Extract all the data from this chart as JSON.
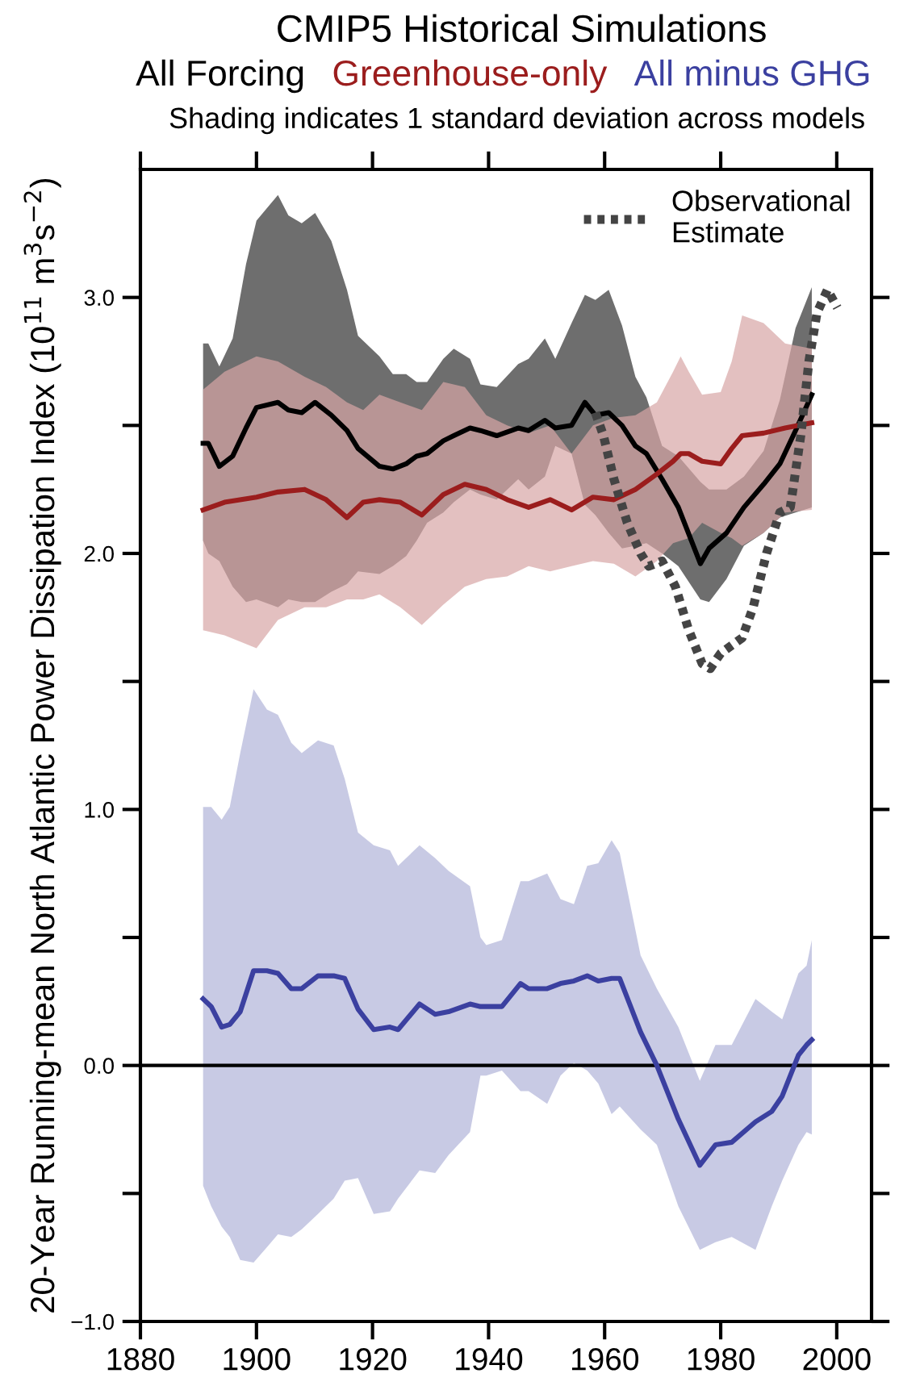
{
  "chart_data": {
    "type": "line",
    "title": "CMIP5 Historical Simulations",
    "subtitle": "Shading indicates 1 standard deviation across models",
    "ylabel": "20-Year Running-mean North Atlantic Power Dissipation Index (10$^{11}$ m$^{3}$s$^{−2}$)",
    "xlim": [
      1880,
      2006
    ],
    "xticks": [
      1880,
      1900,
      1920,
      1940,
      1960,
      1980,
      2000
    ],
    "ylim": [
      -1.0,
      3.5
    ],
    "yticks": [
      {
        "value": -1.0,
        "label": "−1.0"
      },
      {
        "value": -0.5,
        "label": null
      },
      {
        "value": 0.0,
        "label": "0.0"
      },
      {
        "value": 0.5,
        "label": null
      },
      {
        "value": 1.0,
        "label": "1.0"
      },
      {
        "value": 1.5,
        "label": null
      },
      {
        "value": 2.0,
        "label": "2.0"
      },
      {
        "value": 2.5,
        "label": null
      },
      {
        "value": 3.0,
        "label": "3.0"
      }
    ],
    "ref_lines": [
      {
        "axis": "y",
        "value": 0,
        "color": "#000000"
      }
    ],
    "grid": false,
    "legend": "top right",
    "series": [
      {
        "name": "All Forcing",
        "line_style": "solid",
        "color": "#000000",
        "x": [
          1890.8,
          1891.7,
          1893.6,
          1895.9,
          1898.2,
          1900.0,
          1903.7,
          1905.5,
          1907.8,
          1910.1,
          1912.9,
          1915.6,
          1917.5,
          1921.2,
          1923.5,
          1925.8,
          1927.6,
          1929.4,
          1932.2,
          1934.0,
          1936.8,
          1938.6,
          1941.4,
          1945.1,
          1946.9,
          1949.7,
          1951.5,
          1954.3,
          1956.6,
          1958.4,
          1960.7,
          1963.0,
          1965.3,
          1967.2,
          1969.9,
          1972.7,
          1976.5,
          1978.0,
          1981.0,
          1984.0,
          1987.4,
          1990.2,
          1992.9,
          1995.7
        ],
        "values": [
          2.43,
          2.43,
          2.34,
          2.38,
          2.49,
          2.57,
          2.59,
          2.56,
          2.55,
          2.59,
          2.54,
          2.48,
          2.41,
          2.34,
          2.33,
          2.35,
          2.38,
          2.39,
          2.44,
          2.46,
          2.49,
          2.48,
          2.46,
          2.49,
          2.48,
          2.52,
          2.49,
          2.5,
          2.59,
          2.54,
          2.55,
          2.5,
          2.42,
          2.39,
          2.29,
          2.18,
          1.96,
          2.02,
          2.08,
          2.18,
          2.27,
          2.35,
          2.48,
          2.62
        ],
        "upper": [
          2.82,
          2.82,
          2.73,
          2.84,
          3.13,
          3.3,
          3.4,
          3.32,
          3.29,
          3.33,
          3.22,
          3.03,
          2.85,
          2.77,
          2.7,
          2.7,
          2.67,
          2.67,
          2.76,
          2.8,
          2.76,
          2.66,
          2.65,
          2.74,
          2.76,
          2.84,
          2.76,
          2.9,
          3.01,
          2.99,
          3.03,
          2.89,
          2.69,
          2.61,
          2.42,
          2.38,
          2.28,
          2.25,
          2.25,
          2.3,
          2.4,
          2.6,
          2.88,
          3.04
        ],
        "lower": [
          2.05,
          2.0,
          1.97,
          1.87,
          1.81,
          1.82,
          1.79,
          1.82,
          1.81,
          1.81,
          1.85,
          1.88,
          1.93,
          1.92,
          1.95,
          1.99,
          2.05,
          2.12,
          2.16,
          2.2,
          2.25,
          2.23,
          2.21,
          2.29,
          2.25,
          2.3,
          2.42,
          2.39,
          2.19,
          2.15,
          2.08,
          2.02,
          2.03,
          2.04,
          2.0,
          1.95,
          1.82,
          1.81,
          1.9,
          2.03,
          2.08,
          2.14,
          2.16,
          2.18
        ]
      },
      {
        "name": "Greenhouse-only",
        "line_style": "solid",
        "color": "#9b1d1d",
        "x": [
          1890.8,
          1894.5,
          1900.0,
          1903.7,
          1908.3,
          1912.0,
          1915.6,
          1918.4,
          1921.2,
          1924.8,
          1928.5,
          1932.2,
          1935.9,
          1939.6,
          1943.2,
          1946.9,
          1950.6,
          1954.3,
          1958.0,
          1961.6,
          1965.3,
          1969.0,
          1971.8,
          1973.1,
          1974.5,
          1976.8,
          1980.0,
          1981.9,
          1983.7,
          1987.4,
          1991.1,
          1995.7
        ],
        "values": [
          2.17,
          2.2,
          2.22,
          2.24,
          2.25,
          2.21,
          2.14,
          2.2,
          2.21,
          2.2,
          2.15,
          2.23,
          2.27,
          2.25,
          2.21,
          2.18,
          2.21,
          2.17,
          2.22,
          2.21,
          2.25,
          2.31,
          2.36,
          2.39,
          2.39,
          2.36,
          2.35,
          2.41,
          2.46,
          2.47,
          2.49,
          2.51
        ],
        "upper": [
          2.64,
          2.71,
          2.77,
          2.75,
          2.69,
          2.65,
          2.59,
          2.56,
          2.62,
          2.59,
          2.56,
          2.67,
          2.65,
          2.54,
          2.5,
          2.47,
          2.5,
          2.39,
          2.5,
          2.53,
          2.54,
          2.59,
          2.71,
          2.77,
          2.71,
          2.62,
          2.63,
          2.75,
          2.93,
          2.9,
          2.82,
          2.8
        ],
        "lower": [
          1.7,
          1.68,
          1.63,
          1.74,
          1.79,
          1.79,
          1.82,
          1.82,
          1.84,
          1.79,
          1.72,
          1.8,
          1.87,
          1.9,
          1.91,
          1.95,
          1.93,
          1.95,
          1.97,
          1.96,
          1.91,
          1.97,
          2.04,
          2.05,
          2.06,
          2.12,
          2.08,
          2.06,
          2.03,
          2.08,
          2.16,
          2.17
        ]
      },
      {
        "name": "All minus GHG",
        "line_style": "solid",
        "color": "#3b40a0",
        "x": [
          1890.8,
          1892.2,
          1894.0,
          1895.4,
          1897.2,
          1899.5,
          1901.8,
          1903.7,
          1906.0,
          1907.8,
          1910.6,
          1913.3,
          1915.2,
          1917.5,
          1920.2,
          1923.0,
          1924.4,
          1928.1,
          1930.8,
          1933.1,
          1936.8,
          1938.6,
          1939.6,
          1942.3,
          1945.5,
          1946.9,
          1950.1,
          1952.4,
          1954.7,
          1957.0,
          1958.9,
          1961.2,
          1962.6,
          1966.2,
          1969.0,
          1972.7,
          1976.4,
          1979.1,
          1981.9,
          1986.0,
          1988.8,
          1990.6,
          1993.4,
          1994.8,
          1995.7
        ],
        "values": [
          0.26,
          0.23,
          0.15,
          0.16,
          0.21,
          0.37,
          0.37,
          0.36,
          0.3,
          0.3,
          0.35,
          0.35,
          0.34,
          0.22,
          0.14,
          0.15,
          0.14,
          0.24,
          0.2,
          0.21,
          0.24,
          0.23,
          0.23,
          0.23,
          0.32,
          0.3,
          0.3,
          0.32,
          0.33,
          0.35,
          0.33,
          0.34,
          0.34,
          0.13,
          0.0,
          -0.21,
          -0.39,
          -0.31,
          -0.3,
          -0.22,
          -0.18,
          -0.12,
          0.04,
          0.08,
          0.1
        ],
        "upper": [
          1.01,
          1.01,
          0.96,
          1.01,
          1.22,
          1.47,
          1.39,
          1.37,
          1.26,
          1.22,
          1.27,
          1.25,
          1.12,
          0.91,
          0.86,
          0.84,
          0.78,
          0.86,
          0.81,
          0.76,
          0.7,
          0.5,
          0.47,
          0.49,
          0.72,
          0.72,
          0.75,
          0.65,
          0.63,
          0.78,
          0.79,
          0.88,
          0.83,
          0.43,
          0.3,
          0.15,
          -0.06,
          0.08,
          0.08,
          0.26,
          0.21,
          0.18,
          0.36,
          0.39,
          0.49
        ],
        "lower": [
          -0.47,
          -0.55,
          -0.63,
          -0.67,
          -0.76,
          -0.77,
          -0.71,
          -0.66,
          -0.67,
          -0.64,
          -0.58,
          -0.52,
          -0.45,
          -0.44,
          -0.58,
          -0.57,
          -0.52,
          -0.41,
          -0.42,
          -0.35,
          -0.26,
          -0.04,
          -0.04,
          -0.02,
          -0.1,
          -0.1,
          -0.15,
          -0.04,
          0.01,
          -0.02,
          -0.07,
          -0.19,
          -0.16,
          -0.25,
          -0.31,
          -0.55,
          -0.72,
          -0.69,
          -0.67,
          -0.72,
          -0.55,
          -0.45,
          -0.31,
          -0.26,
          -0.27
        ]
      },
      {
        "name": "Observational\nEstimate",
        "line_style": "dotted",
        "color": "#444444",
        "x": [
          1958.4,
          1959.8,
          1961.6,
          1963.9,
          1966.2,
          1967.6,
          1969.9,
          1972.2,
          1974.5,
          1976.8,
          1978.2,
          1980.0,
          1983.7,
          1985.6,
          1987.9,
          1990.2,
          1992.0,
          1993.8,
          1995.2,
          1996.6,
          1998.4,
          2000.1
        ],
        "values": [
          2.55,
          2.46,
          2.29,
          2.12,
          2.0,
          1.95,
          1.97,
          1.87,
          1.7,
          1.57,
          1.55,
          1.61,
          1.67,
          1.79,
          2.0,
          2.16,
          2.18,
          2.46,
          2.75,
          2.94,
          3.03,
          2.96
        ]
      }
    ]
  }
}
